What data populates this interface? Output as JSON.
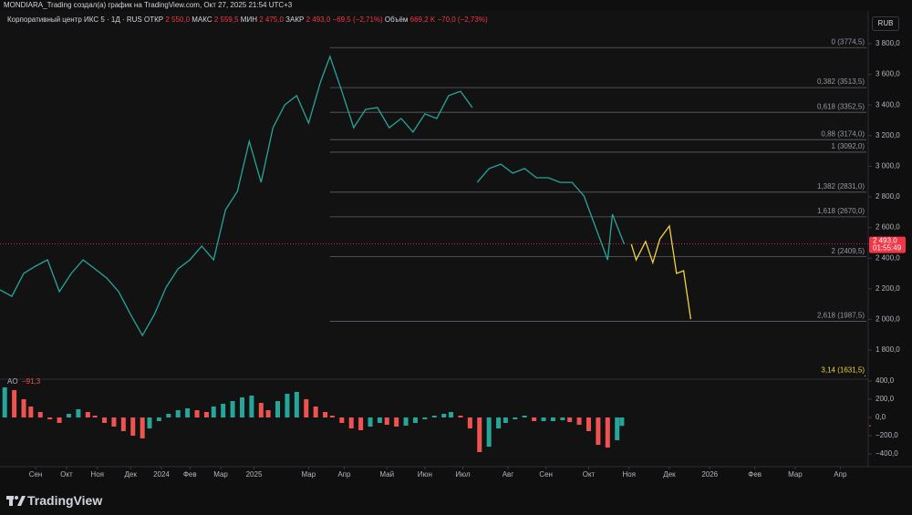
{
  "header": {
    "caption": "MONDIARA_Trading создал(а) график на TradingView.com, Окт 27, 2025 21:54 UTC+3"
  },
  "legend": {
    "symbol": "Корпоративный центр ИКС 5 · 1Д · RUS",
    "ohlc": [
      {
        "key": "ОТКР",
        "value": "2 550,0"
      },
      {
        "key": "МАКС",
        "value": "2 559,5"
      },
      {
        "key": "МИН",
        "value": "2 475,0"
      },
      {
        "key": "ЗАКР",
        "value": "2 493,0"
      }
    ],
    "change": "−69,5 (−2,71%)",
    "volume_key": "Объём",
    "volume": "669,2 K",
    "volume_change": "−70,0 (−2,73%)"
  },
  "currency": "RUB",
  "footer": {
    "brand": "TradingView"
  },
  "chart_data": {
    "type": "line",
    "xlim": [
      0,
      365
    ],
    "xticks": [
      {
        "value": 15,
        "label": "Сен"
      },
      {
        "value": 28,
        "label": "Окт"
      },
      {
        "value": 41,
        "label": "Ноя"
      },
      {
        "value": 55,
        "label": "Дек"
      },
      {
        "value": 68,
        "label": "2024"
      },
      {
        "value": 80,
        "label": "Фев"
      },
      {
        "value": 93,
        "label": "Мар"
      },
      {
        "value": 107,
        "label": "2025"
      },
      {
        "value": 130,
        "label": "Мар"
      },
      {
        "value": 145,
        "label": "Апр"
      },
      {
        "value": 163,
        "label": "Май"
      },
      {
        "value": 179,
        "label": "Июн"
      },
      {
        "value": 195,
        "label": "Июл"
      },
      {
        "value": 214,
        "label": "Авг"
      },
      {
        "value": 230,
        "label": "Сен"
      },
      {
        "value": 248,
        "label": "Окт"
      },
      {
        "value": 265,
        "label": "Ноя"
      },
      {
        "value": 282,
        "label": "Дек"
      },
      {
        "value": 299,
        "label": "2026"
      },
      {
        "value": 318,
        "label": "Фев"
      },
      {
        "value": 335,
        "label": "Мар"
      },
      {
        "value": 354,
        "label": "Апр"
      }
    ],
    "ylim": [
      1610,
      4014
    ],
    "yticks": [
      {
        "value": 3800,
        "label": "3 800,0"
      },
      {
        "value": 3600,
        "label": "3 600,0"
      },
      {
        "value": 3400,
        "label": "3 400,0"
      },
      {
        "value": 3200,
        "label": "3 200,0"
      },
      {
        "value": 3000,
        "label": "3 000,0"
      },
      {
        "value": 2800,
        "label": "2 800,0"
      },
      {
        "value": 2600,
        "label": "2 600,0"
      },
      {
        "value": 2400,
        "label": "2 400,0"
      },
      {
        "value": 2200,
        "label": "2 200,0"
      },
      {
        "value": 2000,
        "label": "2 000,0"
      },
      {
        "value": 1800,
        "label": "1 800,0"
      }
    ],
    "series": [
      {
        "color": "#26a69a",
        "x": [
          0,
          5,
          10,
          15,
          20,
          25,
          30,
          35,
          40,
          45,
          50,
          55,
          60,
          65,
          70,
          75,
          80,
          85,
          90,
          95,
          100,
          105,
          110,
          115,
          120,
          125,
          130,
          135,
          139,
          144,
          149,
          154,
          159,
          164,
          169,
          174,
          179,
          184,
          189,
          194,
          199,
          200,
          201,
          206,
          211,
          216,
          221,
          226,
          231,
          236,
          241,
          246,
          251,
          256,
          258,
          263
        ],
        "values": [
          2193,
          2151,
          2300,
          2348,
          2389,
          2181,
          2300,
          2389,
          2330,
          2270,
          2181,
          2032,
          1895,
          2032,
          2211,
          2330,
          2389,
          2479,
          2389,
          2717,
          2836,
          3163,
          2895,
          3252,
          3401,
          3461,
          3282,
          3550,
          3717,
          3490,
          3252,
          3371,
          3383,
          3252,
          3312,
          3223,
          3342,
          3312,
          3461,
          3490,
          3383,
          null,
          2895,
          2985,
          3014,
          2955,
          2985,
          2925,
          2925,
          2895,
          2895,
          2806,
          2598,
          2389,
          2687,
          2491
        ]
      },
      {
        "color": "#f0d23c",
        "x": [
          266,
          268,
          272,
          275,
          278,
          282,
          285,
          288,
          291
        ],
        "values": [
          2491,
          2389,
          2509,
          2371,
          2526,
          2610,
          2300,
          2318,
          2002
        ]
      }
    ],
    "fib_levels": [
      {
        "value": 3774.5,
        "label": "0 (3774,5)",
        "color": "#5d606b",
        "show_line": true
      },
      {
        "value": 3513.5,
        "label": "0,382 (3513,5)",
        "color": "#5d606b",
        "show_line": true
      },
      {
        "value": 3352.5,
        "label": "0,618 (3352,5)",
        "color": "#5d606b",
        "show_line": true
      },
      {
        "value": 3174,
        "label": "0,88 (3174,0)",
        "color": "#5d606b",
        "show_line": true
      },
      {
        "value": 3092,
        "label": "1 (3092,0)",
        "color": "#5d606b",
        "show_line": true
      },
      {
        "value": 2831,
        "label": "1,382 (2831,0)",
        "color": "#5d606b",
        "show_line": true
      },
      {
        "value": 2670,
        "label": "1,618 (2670,0)",
        "color": "#5d606b",
        "show_line": true
      },
      {
        "value": 2409.5,
        "label": "2 (2409,5)",
        "color": "#5d606b",
        "show_line": true
      },
      {
        "value": 1987.5,
        "label": "2,618 (1987,5)",
        "color": "#5d606b",
        "show_line": true
      },
      {
        "value": 1631.5,
        "label": "3,14 (1631,5)",
        "color": "#f0d23c",
        "show_line": false
      }
    ],
    "last_price": {
      "value": 2493,
      "label": "2 493,0",
      "countdown": "01:55:49",
      "color": "#f23645"
    },
    "ao": {
      "name": "AO",
      "last": {
        "value": -91.3,
        "label": "−91,3"
      },
      "up_color": "#26a69a",
      "down_color": "#ef5350",
      "y2lim": [
        -540,
        420
      ],
      "y2ticks": [
        {
          "value": 400,
          "label": "400,0"
        },
        {
          "value": 200,
          "label": "200,0"
        },
        {
          "value": 0,
          "label": "0,0"
        },
        {
          "value": -200,
          "label": "−200,0"
        },
        {
          "value": -400,
          "label": "−400,0"
        }
      ],
      "x": [
        2,
        6,
        10,
        13,
        17,
        21,
        25,
        29,
        33,
        37,
        40,
        44,
        48,
        52,
        56,
        60,
        63,
        67,
        71,
        75,
        79,
        83,
        87,
        90,
        94,
        98,
        102,
        106,
        110,
        113,
        117,
        121,
        125,
        129,
        133,
        137,
        140,
        144,
        148,
        152,
        156,
        160,
        163,
        167,
        171,
        175,
        179,
        183,
        187,
        190,
        194,
        198,
        202,
        206,
        210,
        213,
        217,
        221,
        225,
        229,
        233,
        237,
        240,
        244,
        248,
        252,
        256,
        260,
        262
      ],
      "values": [
        330,
        300,
        200,
        120,
        60,
        -20,
        -60,
        40,
        90,
        60,
        20,
        -60,
        -100,
        -150,
        -200,
        -230,
        -120,
        -40,
        40,
        80,
        100,
        80,
        60,
        120,
        150,
        180,
        220,
        240,
        160,
        80,
        180,
        260,
        280,
        200,
        120,
        60,
        20,
        -60,
        -120,
        -140,
        -100,
        -60,
        -80,
        -100,
        -90,
        -60,
        -20,
        20,
        40,
        60,
        20,
        -120,
        -380,
        -320,
        -120,
        -60,
        -20,
        20,
        -40,
        -40,
        -40,
        -30,
        -50,
        -80,
        -150,
        -300,
        -330,
        -250,
        -91.3
      ]
    }
  }
}
